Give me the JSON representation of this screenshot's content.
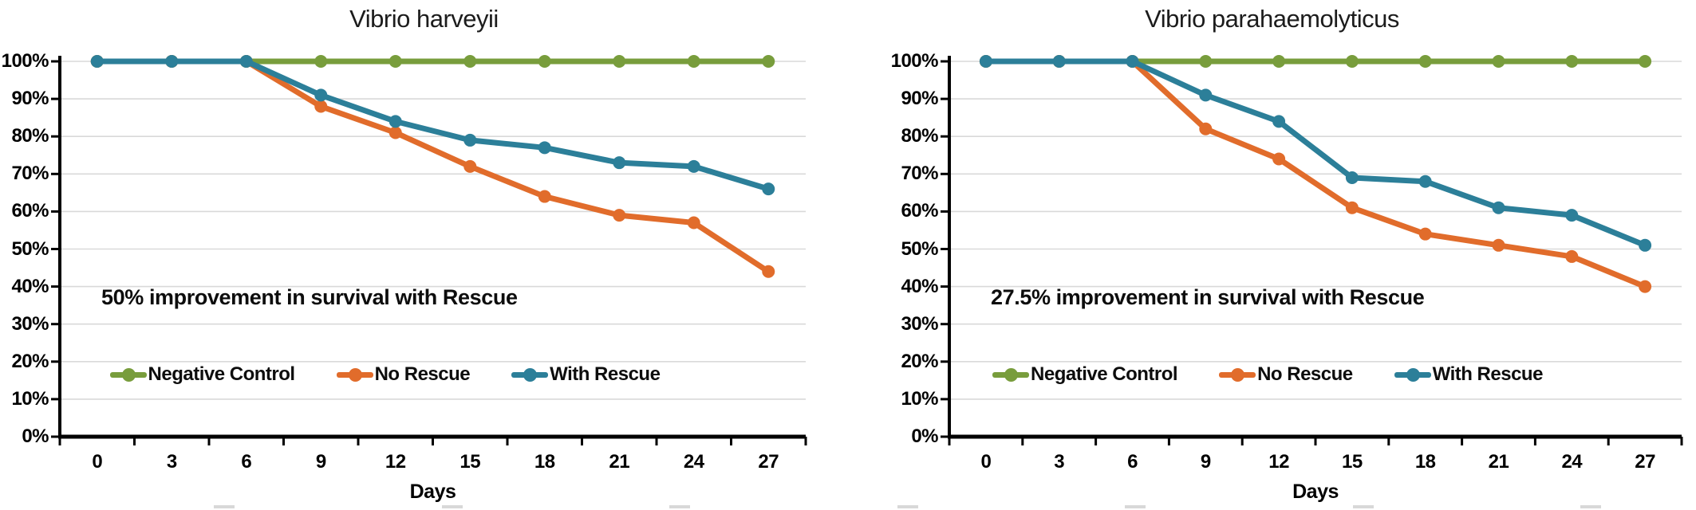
{
  "chart_data": [
    {
      "type": "line",
      "title": "Vibrio harveyii",
      "xlabel": "Days",
      "annotation": "50% improvement in survival with Rescue",
      "x": [
        0,
        3,
        6,
        9,
        12,
        15,
        18,
        21,
        24,
        27
      ],
      "ylim": [
        0,
        100
      ],
      "y_tick_labels": [
        "0%",
        "10%",
        "20%",
        "30%",
        "40%",
        "50%",
        "60%",
        "70%",
        "80%",
        "90%",
        "100%"
      ],
      "grid": true,
      "legend_position": "inside-bottom",
      "series": [
        {
          "name": "Negative Control",
          "color": "#789D3C",
          "values": [
            100,
            100,
            100,
            100,
            100,
            100,
            100,
            100,
            100,
            100
          ]
        },
        {
          "name": "No Rescue",
          "color": "#E16C2B",
          "values": [
            100,
            100,
            100,
            88,
            81,
            72,
            64,
            59,
            57,
            44
          ]
        },
        {
          "name": "With Rescue",
          "color": "#2C7F99",
          "values": [
            100,
            100,
            100,
            91,
            84,
            79,
            77,
            73,
            72,
            66
          ]
        }
      ]
    },
    {
      "type": "line",
      "title": "Vibrio parahaemolyticus",
      "xlabel": "Days",
      "annotation": "27.5% improvement in survival with Rescue",
      "x": [
        0,
        3,
        6,
        9,
        12,
        15,
        18,
        21,
        24,
        27
      ],
      "ylim": [
        0,
        100
      ],
      "y_tick_labels": [
        "0%",
        "10%",
        "20%",
        "30%",
        "40%",
        "50%",
        "60%",
        "70%",
        "80%",
        "90%",
        "100%"
      ],
      "grid": true,
      "legend_position": "inside-bottom",
      "series": [
        {
          "name": "Negative Control",
          "color": "#789D3C",
          "values": [
            100,
            100,
            100,
            100,
            100,
            100,
            100,
            100,
            100,
            100
          ]
        },
        {
          "name": "No Rescue",
          "color": "#E16C2B",
          "values": [
            100,
            100,
            100,
            82,
            74,
            61,
            54,
            51,
            48,
            40
          ]
        },
        {
          "name": "With Rescue",
          "color": "#2C7F99",
          "values": [
            100,
            100,
            100,
            91,
            84,
            69,
            68,
            61,
            59,
            51
          ]
        }
      ]
    }
  ]
}
